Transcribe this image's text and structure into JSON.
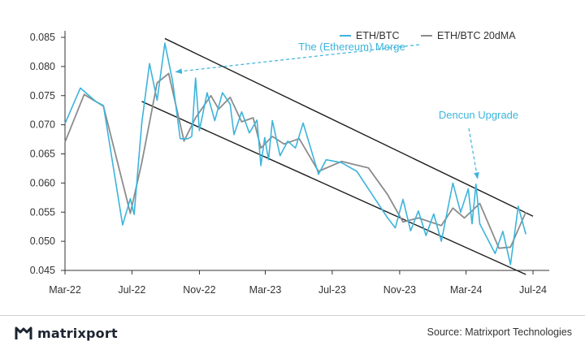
{
  "colors": {
    "eth_btc": "#3cb4dc",
    "ma": "#8c8c8c",
    "annotation": "#3cb4dc",
    "channel": "#1e1e1e",
    "axis": "#333333"
  },
  "brand": {
    "name": "matrixport",
    "logo_icon": "matrixport-logo-icon"
  },
  "source": "Source: Matrixport Technologies",
  "chart_data": {
    "type": "line",
    "title": "",
    "xlabel": "",
    "ylabel": "",
    "ylim": [
      0.045,
      0.085
    ],
    "yticks": [
      "0.045",
      "0.050",
      "0.055",
      "0.060",
      "0.065",
      "0.070",
      "0.075",
      "0.080",
      "0.085"
    ],
    "xticks": [
      "Mar-22",
      "Jul-22",
      "Nov-22",
      "Mar-23",
      "Jul-23",
      "Nov-23",
      "Mar-24",
      "Jul-24"
    ],
    "grid": false,
    "legend": "top-right",
    "series": [
      {
        "name": "ETH/BTC",
        "color": "#3cb4dc",
        "points": [
          [
            "2022-03-01",
            0.0702
          ],
          [
            "2022-03-29",
            0.0763
          ],
          [
            "2022-04-26",
            0.074
          ],
          [
            "2022-05-10",
            0.0733
          ],
          [
            "2022-06-14",
            0.0528
          ],
          [
            "2022-06-28",
            0.0573
          ],
          [
            "2022-07-05",
            0.0546
          ],
          [
            "2022-07-19",
            0.0703
          ],
          [
            "2022-08-02",
            0.0805
          ],
          [
            "2022-08-16",
            0.0742
          ],
          [
            "2022-08-30",
            0.084
          ],
          [
            "2022-09-13",
            0.0775
          ],
          [
            "2022-09-27",
            0.0676
          ],
          [
            "2022-10-11",
            0.0676
          ],
          [
            "2022-10-18",
            0.068
          ],
          [
            "2022-10-25",
            0.078
          ],
          [
            "2022-11-01",
            0.069
          ],
          [
            "2022-11-15",
            0.0755
          ],
          [
            "2022-11-29",
            0.0707
          ],
          [
            "2022-12-13",
            0.0755
          ],
          [
            "2022-12-27",
            0.0735
          ],
          [
            "2023-01-03",
            0.0683
          ],
          [
            "2023-01-17",
            0.0722
          ],
          [
            "2023-01-31",
            0.0686
          ],
          [
            "2023-02-14",
            0.0708
          ],
          [
            "2023-02-21",
            0.063
          ],
          [
            "2023-02-28",
            0.0678
          ],
          [
            "2023-03-07",
            0.064
          ],
          [
            "2023-03-14",
            0.0707
          ],
          [
            "2023-03-28",
            0.0647
          ],
          [
            "2023-04-11",
            0.0672
          ],
          [
            "2023-04-25",
            0.066
          ],
          [
            "2023-05-09",
            0.0703
          ],
          [
            "2023-06-06",
            0.0615
          ],
          [
            "2023-06-20",
            0.064
          ],
          [
            "2023-07-18",
            0.0635
          ],
          [
            "2023-08-15",
            0.062
          ],
          [
            "2023-10-10",
            0.054
          ],
          [
            "2023-10-24",
            0.0523
          ],
          [
            "2023-11-07",
            0.0572
          ],
          [
            "2023-11-21",
            0.0518
          ],
          [
            "2023-12-05",
            0.0552
          ],
          [
            "2023-12-19",
            0.051
          ],
          [
            "2024-01-02",
            0.0547
          ],
          [
            "2024-01-16",
            0.05
          ],
          [
            "2024-02-06",
            0.06
          ],
          [
            "2024-02-20",
            0.055
          ],
          [
            "2024-03-05",
            0.059
          ],
          [
            "2024-03-12",
            0.053
          ],
          [
            "2024-03-19",
            0.0598
          ],
          [
            "2024-03-26",
            0.053
          ],
          [
            "2024-04-23",
            0.0479
          ],
          [
            "2024-05-07",
            0.0517
          ],
          [
            "2024-05-21",
            0.046
          ],
          [
            "2024-06-04",
            0.056
          ],
          [
            "2024-06-18",
            0.0512
          ]
        ]
      },
      {
        "name": "ETH/BTC 20dMA",
        "color": "#8c8c8c",
        "points": [
          [
            "2022-03-01",
            0.067
          ],
          [
            "2022-04-05",
            0.0752
          ],
          [
            "2022-05-10",
            0.0732
          ],
          [
            "2022-06-28",
            0.0548
          ],
          [
            "2022-07-19",
            0.0635
          ],
          [
            "2022-08-16",
            0.0772
          ],
          [
            "2022-09-06",
            0.0788
          ],
          [
            "2022-10-04",
            0.0672
          ],
          [
            "2022-10-25",
            0.0712
          ],
          [
            "2022-11-22",
            0.075
          ],
          [
            "2022-12-06",
            0.0727
          ],
          [
            "2022-12-27",
            0.0747
          ],
          [
            "2023-01-17",
            0.0705
          ],
          [
            "2023-02-07",
            0.0712
          ],
          [
            "2023-02-21",
            0.066
          ],
          [
            "2023-03-14",
            0.068
          ],
          [
            "2023-04-04",
            0.0667
          ],
          [
            "2023-05-02",
            0.0676
          ],
          [
            "2023-06-06",
            0.062
          ],
          [
            "2023-07-18",
            0.0637
          ],
          [
            "2023-09-05",
            0.0626
          ],
          [
            "2023-10-10",
            0.058
          ],
          [
            "2023-11-07",
            0.0533
          ],
          [
            "2023-12-05",
            0.054
          ],
          [
            "2024-01-16",
            0.0527
          ],
          [
            "2024-02-06",
            0.0557
          ],
          [
            "2024-02-27",
            0.054
          ],
          [
            "2024-03-26",
            0.0565
          ],
          [
            "2024-04-30",
            0.0488
          ],
          [
            "2024-05-21",
            0.049
          ],
          [
            "2024-06-18",
            0.055
          ]
        ]
      }
    ],
    "trend_channel": [
      {
        "start": [
          "2022-08-30",
          0.0848
        ],
        "end": [
          "2024-07-01",
          0.0543
        ]
      },
      {
        "start": [
          "2022-07-19",
          0.074
        ],
        "end": [
          "2024-06-18",
          0.0443
        ]
      }
    ],
    "annotations": [
      {
        "text": "The (Ethereum) Merge",
        "target": [
          "2022-09-13",
          0.0788
        ]
      },
      {
        "text": "Dencun Upgrade",
        "target": [
          "2024-03-19",
          0.0602
        ]
      }
    ]
  }
}
